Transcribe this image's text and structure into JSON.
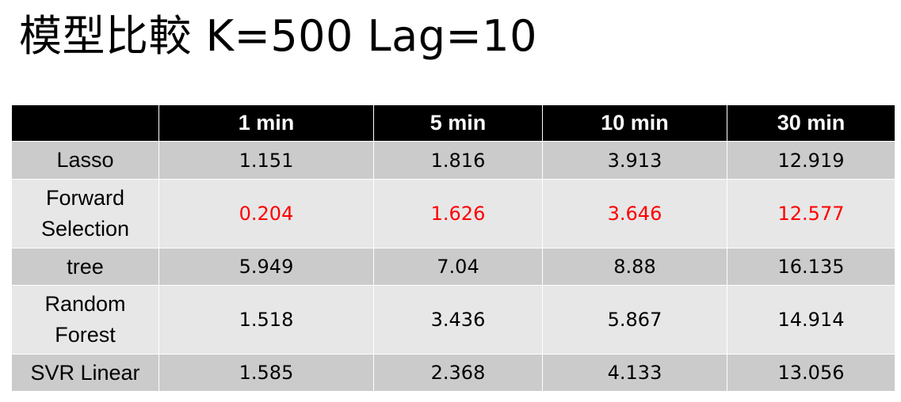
{
  "title": "模型比較 K=500 Lag=10",
  "colors": {
    "header_bg": "#000000",
    "header_text": "#ffffff",
    "row_dark": "#cbcbcb",
    "row_light": "#e7e7e7",
    "highlight": "#ff0000"
  },
  "table": {
    "columns": [
      "",
      "1 min",
      "5 min",
      "10 min",
      "30 min"
    ],
    "rows": [
      {
        "label_lines": [
          "Lasso"
        ],
        "values": [
          "1.151",
          "1.816",
          "3.913",
          "12.919"
        ],
        "highlight": false
      },
      {
        "label_lines": [
          "Forward",
          "Selection"
        ],
        "values": [
          "0.204",
          "1.626",
          "3.646",
          "12.577"
        ],
        "highlight": true
      },
      {
        "label_lines": [
          "tree"
        ],
        "values": [
          "5.949",
          "7.04",
          "8.88",
          "16.135"
        ],
        "highlight": false
      },
      {
        "label_lines": [
          "Random",
          "Forest"
        ],
        "values": [
          "1.518",
          "3.436",
          "5.867",
          "14.914"
        ],
        "highlight": false
      },
      {
        "label_lines": [
          "SVR Linear"
        ],
        "values": [
          "1.585",
          "2.368",
          "4.133",
          "13.056"
        ],
        "highlight": false
      }
    ]
  }
}
